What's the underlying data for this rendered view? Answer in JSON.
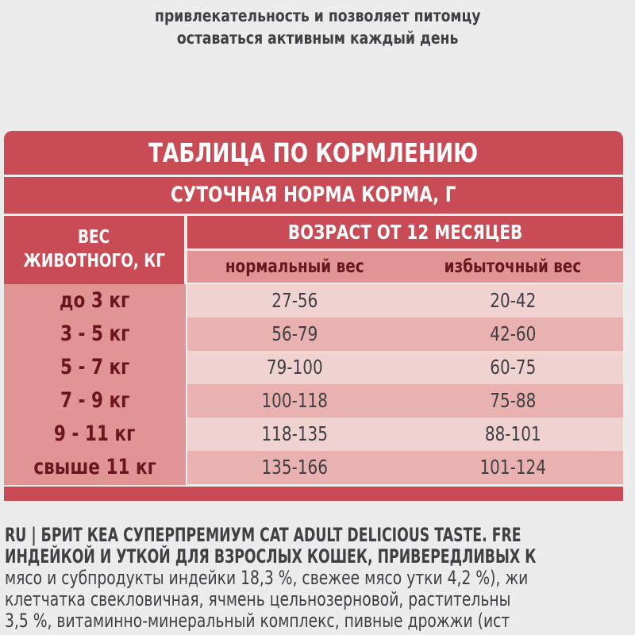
{
  "intro_lines": [
    "привлекательность и позволяет питомцу",
    "оставаться активным каждый день"
  ],
  "table": {
    "title": "ТАБЛИЦА ПО КОРМЛЕНИЮ",
    "subtitle": "СУТОЧНАЯ НОРМА КОРМА, Г",
    "weight_header": [
      "ВЕС",
      "ЖИВОТНОГО, КГ"
    ],
    "age_header": "ВОЗРАСТ ОТ 12 МЕСЯЦЕВ",
    "columns": [
      "нормальный вес",
      "избыточный вес"
    ],
    "rows": [
      {
        "weight": "до 3 кг",
        "normal": "27-56",
        "over": "20-42"
      },
      {
        "weight": "3 - 5 кг",
        "normal": "56-79",
        "over": "42-60"
      },
      {
        "weight": "5 - 7 кг",
        "normal": "79-100",
        "over": "60-75"
      },
      {
        "weight": "7 - 9 кг",
        "normal": "100-118",
        "over": "75-88"
      },
      {
        "weight": "9 - 11 кг",
        "normal": "118-135",
        "over": "88-101"
      },
      {
        "weight": "свыше 11 кг",
        "normal": "135-166",
        "over": "101-124"
      }
    ]
  },
  "footer_lines": [
    "RU | БРИТ КЕА СУПЕРПРЕМИУМ CAT ADULT DELICIOUS TASTE. FRE",
    "ИНДЕЙКОЙ И УТКОЙ ДЛЯ ВЗРОСЛЫХ КОШЕК, ПРИВЕРЕДЛИВЫХ К",
    "мясо и субпродукты индейки 18,3 %, свежее мясо утки 4,2 %), жи",
    "клетчатка свекловичная, ячмень цельнозерновой, растительны",
    "3,5 %, витаминно-минеральный комплекс, пивные дрожжи (ист"
  ],
  "colors": {
    "red": "#c84b55",
    "pink": "#e09494",
    "row_light": "#f0d2d1",
    "row_dark": "#e9b1b0",
    "dark_red_text": "#6b1520"
  }
}
